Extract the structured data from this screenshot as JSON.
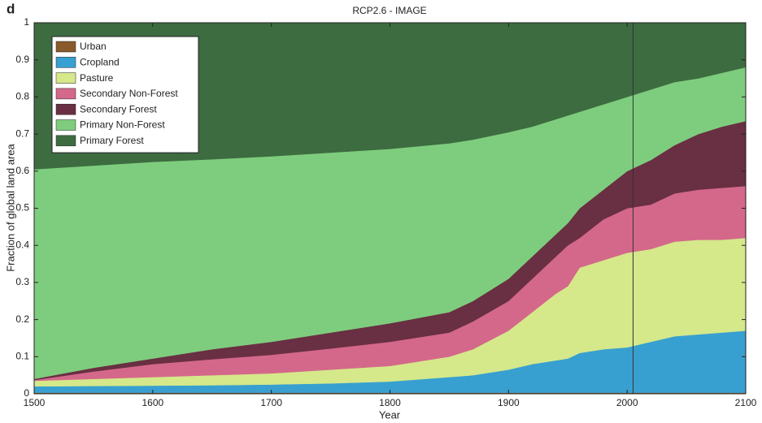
{
  "chart_data": {
    "type": "stacked_area",
    "panel_label": "d",
    "title": "RCP2.6 - IMAGE",
    "x_label": "Year",
    "y_label": "Fraction of global land area",
    "x": [
      1500,
      1550,
      1600,
      1650,
      1700,
      1750,
      1800,
      1850,
      1870,
      1900,
      1920,
      1940,
      1950,
      1960,
      1980,
      2000,
      2020,
      2040,
      2060,
      2080,
      2100
    ],
    "series": [
      {
        "name": "Urban",
        "color": "#8b5a2b",
        "values": [
          0.003,
          0.003,
          0.003,
          0.003,
          0.003,
          0.003,
          0.003,
          0.003,
          0.003,
          0.003,
          0.003,
          0.003,
          0.003,
          0.003,
          0.003,
          0.003,
          0.003,
          0.003,
          0.003,
          0.003,
          0.003
        ]
      },
      {
        "name": "Cropland",
        "color": "#38a0d0",
        "values": [
          0.017,
          0.018,
          0.019,
          0.02,
          0.022,
          0.025,
          0.03,
          0.042,
          0.047,
          0.062,
          0.077,
          0.087,
          0.092,
          0.107,
          0.117,
          0.122,
          0.137,
          0.152,
          0.157,
          0.162,
          0.167
        ]
      },
      {
        "name": "Pasture",
        "color": "#d5e88a",
        "values": [
          0.015,
          0.019,
          0.023,
          0.027,
          0.03,
          0.037,
          0.042,
          0.055,
          0.07,
          0.105,
          0.14,
          0.18,
          0.195,
          0.23,
          0.24,
          0.255,
          0.25,
          0.255,
          0.255,
          0.25,
          0.25
        ]
      },
      {
        "name": "Secondary Non-Forest",
        "color": "#d4688a",
        "values": [
          0.002,
          0.02,
          0.035,
          0.043,
          0.05,
          0.057,
          0.065,
          0.065,
          0.075,
          0.08,
          0.09,
          0.1,
          0.11,
          0.08,
          0.11,
          0.12,
          0.12,
          0.13,
          0.135,
          0.14,
          0.14
        ]
      },
      {
        "name": "Secondary Forest",
        "color": "#692f42",
        "values": [
          0.003,
          0.01,
          0.015,
          0.027,
          0.035,
          0.043,
          0.05,
          0.055,
          0.055,
          0.06,
          0.06,
          0.06,
          0.06,
          0.08,
          0.08,
          0.1,
          0.12,
          0.13,
          0.15,
          0.165,
          0.175
        ]
      },
      {
        "name": "Primary Non-Forest",
        "color": "#7ecd7e",
        "values": [
          0.565,
          0.545,
          0.53,
          0.512,
          0.5,
          0.485,
          0.47,
          0.455,
          0.435,
          0.395,
          0.35,
          0.31,
          0.29,
          0.26,
          0.23,
          0.2,
          0.19,
          0.17,
          0.15,
          0.145,
          0.145
        ]
      },
      {
        "name": "Primary Forest",
        "color": "#3d6c40",
        "values": [
          0.395,
          0.385,
          0.375,
          0.368,
          0.36,
          0.35,
          0.34,
          0.325,
          0.315,
          0.295,
          0.28,
          0.26,
          0.25,
          0.24,
          0.22,
          0.2,
          0.18,
          0.16,
          0.15,
          0.135,
          0.12
        ]
      }
    ],
    "reference_line_x": 2005,
    "xlim": [
      1500,
      2100
    ],
    "xticks": [
      1500,
      1600,
      1700,
      1800,
      1900,
      2000,
      2100
    ],
    "ylim": [
      0,
      1
    ],
    "yticks": [
      0,
      0.1,
      0.2,
      0.3,
      0.4,
      0.5,
      0.6,
      0.7,
      0.8,
      0.9,
      1
    ],
    "legend": "upper left"
  }
}
